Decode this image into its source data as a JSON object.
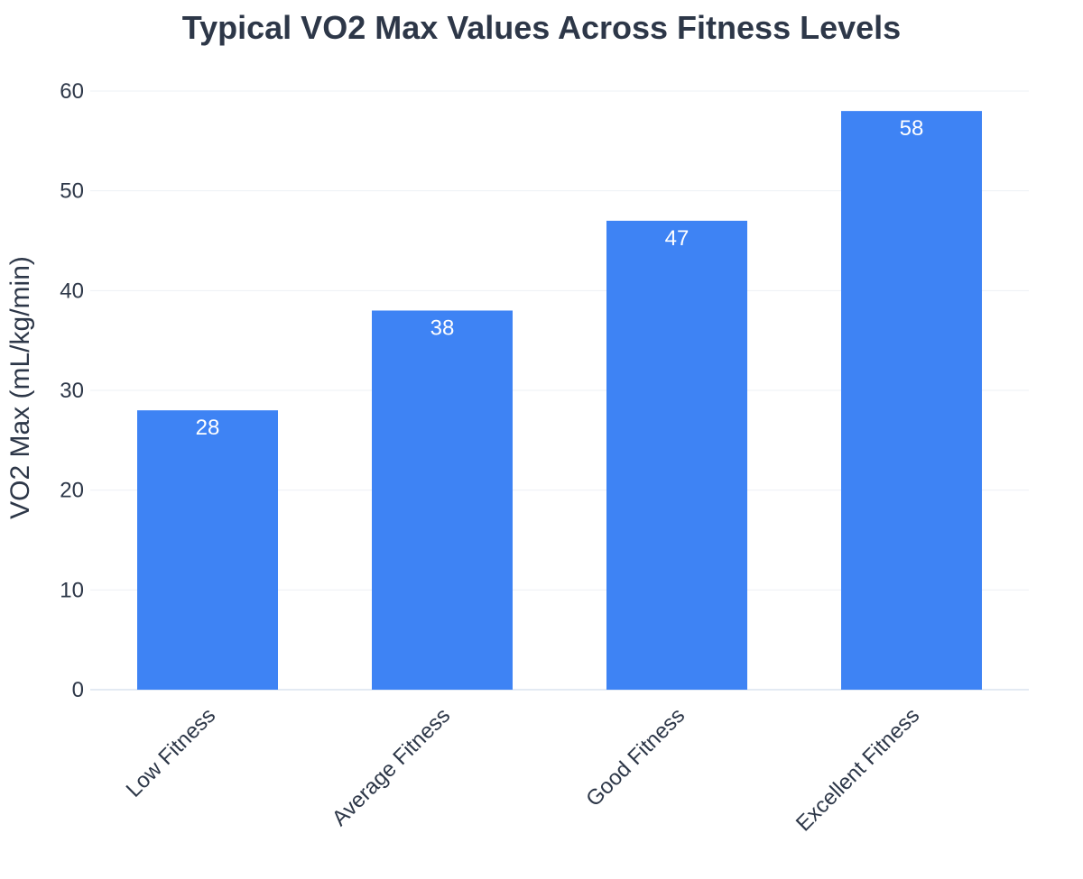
{
  "chart_data": {
    "type": "bar",
    "title": "Typical VO2 Max Values Across Fitness Levels",
    "xlabel": "",
    "ylabel": "VO2 Max (mL/kg/min)",
    "categories": [
      "Low Fitness",
      "Average Fitness",
      "Good Fitness",
      "Excellent Fitness"
    ],
    "values": [
      28,
      38,
      47,
      58
    ],
    "data_labels": [
      "28",
      "38",
      "47",
      "58"
    ],
    "yticks": [
      0,
      10,
      20,
      30,
      40,
      50,
      60
    ],
    "ytick_labels": [
      "0",
      "10",
      "20",
      "30",
      "40",
      "50",
      "60"
    ],
    "ylim": [
      0,
      60
    ],
    "grid": true,
    "legend": "none",
    "colors": {
      "bar": "#3e83f4",
      "grid": "#edf0f4",
      "axis_line": "#e3eaf3",
      "text": "#2d3748",
      "bar_label": "#ffffff"
    }
  }
}
